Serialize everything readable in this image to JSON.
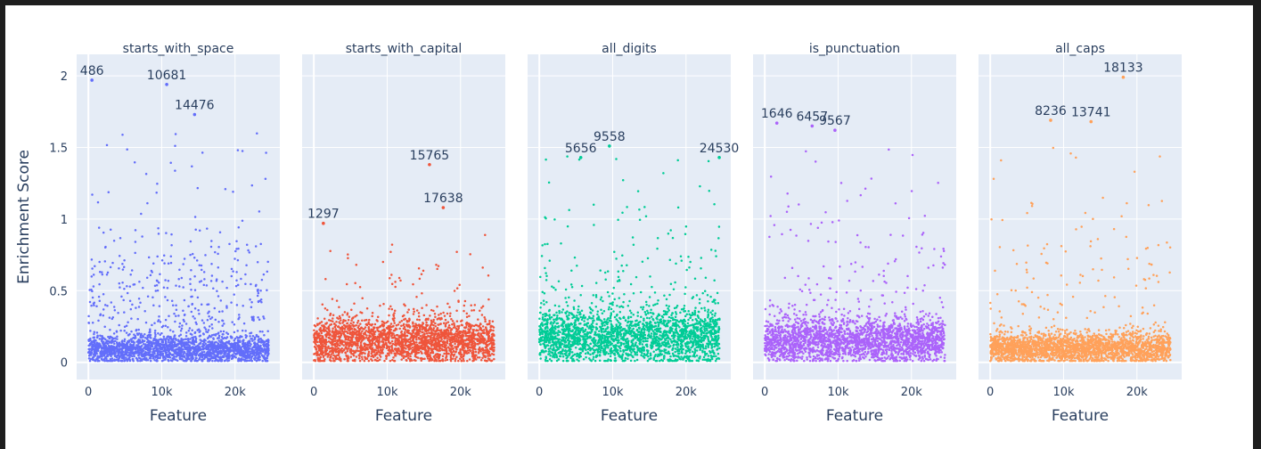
{
  "chart_data": {
    "type": "scatter",
    "layout": "small-multiples",
    "ylabel": "Enrichment Score",
    "xlabel": "Feature",
    "xlim": [
      -1600,
      26100
    ],
    "ylim": [
      -0.12,
      2.15
    ],
    "x_ticks": [
      {
        "value": 0,
        "label": "0"
      },
      {
        "value": 10000,
        "label": "10k"
      },
      {
        "value": 20000,
        "label": "20k"
      }
    ],
    "y_ticks": [
      {
        "value": 0,
        "label": "0"
      },
      {
        "value": 0.5,
        "label": "0.5"
      },
      {
        "value": 1,
        "label": "1"
      },
      {
        "value": 1.5,
        "label": "1.5"
      },
      {
        "value": 2,
        "label": "2"
      }
    ],
    "grid": true,
    "feature_count": 24576,
    "series": [
      {
        "name": "starts_with_space",
        "color": "#636efa",
        "distribution": {
          "base_max": 0.22,
          "base_mean": 0.09,
          "mid_fraction": 0.16,
          "mid_max": 1.1,
          "high_count": 26,
          "high_max": 1.6
        },
        "highlights": [
          {
            "x": 486,
            "y": 1.97,
            "label": "486"
          },
          {
            "x": 10681,
            "y": 1.94,
            "label": "10681"
          },
          {
            "x": 14476,
            "y": 1.73,
            "label": "14476"
          }
        ]
      },
      {
        "name": "starts_with_capital",
        "color": "#ef553b",
        "distribution": {
          "base_max": 0.45,
          "base_mean": 0.15,
          "mid_fraction": 0.03,
          "mid_max": 0.95,
          "high_count": 0,
          "high_max": 0.9
        },
        "highlights": [
          {
            "x": 1297,
            "y": 0.97,
            "label": "1297"
          },
          {
            "x": 15765,
            "y": 1.38,
            "label": "15765"
          },
          {
            "x": 17638,
            "y": 1.08,
            "label": "17638"
          }
        ]
      },
      {
        "name": "all_digits",
        "color": "#00cc96",
        "distribution": {
          "base_max": 0.5,
          "base_mean": 0.18,
          "mid_fraction": 0.05,
          "mid_max": 1.4,
          "high_count": 6,
          "high_max": 1.45
        },
        "highlights": [
          {
            "x": 5656,
            "y": 1.43,
            "label": "5656"
          },
          {
            "x": 9558,
            "y": 1.51,
            "label": "9558"
          },
          {
            "x": 24530,
            "y": 1.43,
            "label": "24530"
          }
        ]
      },
      {
        "name": "is_punctuation",
        "color": "#ab63fa",
        "distribution": {
          "base_max": 0.42,
          "base_mean": 0.15,
          "mid_fraction": 0.05,
          "mid_max": 1.4,
          "high_count": 4,
          "high_max": 1.5
        },
        "highlights": [
          {
            "x": 1646,
            "y": 1.67,
            "label": "1646"
          },
          {
            "x": 6457,
            "y": 1.65,
            "label": "6457"
          },
          {
            "x": 9567,
            "y": 1.62,
            "label": "9567"
          }
        ]
      },
      {
        "name": "all_caps",
        "color": "#ffa15a",
        "distribution": {
          "base_max": 0.28,
          "base_mean": 0.1,
          "mid_fraction": 0.05,
          "mid_max": 1.4,
          "high_count": 5,
          "high_max": 1.5
        },
        "highlights": [
          {
            "x": 8236,
            "y": 1.69,
            "label": "8236"
          },
          {
            "x": 13741,
            "y": 1.68,
            "label": "13741"
          },
          {
            "x": 18133,
            "y": 1.99,
            "label": "18133"
          }
        ]
      }
    ]
  }
}
